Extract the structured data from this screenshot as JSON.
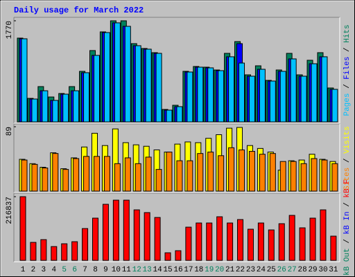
{
  "title": "Daily usage for March 2022",
  "chart_data": [
    {
      "type": "bar",
      "ylim": [
        0,
        1770
      ],
      "yticks": [
        1770
      ],
      "legend_separator": "/",
      "series": [
        {
          "name": "Hits",
          "color": "#00805C",
          "values": [
            1467,
            412,
            618,
            436,
            497,
            618,
            885,
            1249,
            1576,
            1770,
            1770,
            1370,
            1285,
            1212,
            218,
            291,
            885,
            970,
            958,
            909,
            1200,
            1406,
            824,
            982,
            727,
            909,
            1200,
            824,
            1079,
            1212,
            594
          ]
        },
        {
          "name": "Files",
          "color": "#0000FF",
          "values": [
            1455,
            400,
            545,
            376,
            485,
            545,
            861,
            1164,
            1564,
            1734,
            1673,
            1334,
            1273,
            1200,
            206,
            267,
            873,
            958,
            946,
            897,
            1140,
            1370,
            800,
            921,
            715,
            885,
            1103,
            800,
            1018,
            1140,
            570
          ]
        },
        {
          "name": "Pages",
          "color": "#00C0FF",
          "values": [
            1455,
            400,
            545,
            376,
            485,
            545,
            861,
            1164,
            1564,
            1734,
            1673,
            1334,
            1273,
            1200,
            206,
            267,
            873,
            958,
            946,
            897,
            1140,
            1030,
            800,
            921,
            715,
            885,
            1103,
            800,
            1018,
            1140,
            570
          ]
        }
      ]
    },
    {
      "type": "bar",
      "ylim": [
        0,
        89
      ],
      "yticks": [
        89
      ],
      "legend_separator": "/",
      "series": [
        {
          "name": "Visits",
          "color": "#FFFF00",
          "values": [
            44,
            38,
            33,
            53,
            31,
            46,
            61,
            80,
            63,
            86,
            67,
            64,
            62,
            57,
            54,
            65,
            68,
            67,
            73,
            78,
            87,
            88,
            63,
            59,
            54,
            29,
            42,
            43,
            51,
            44,
            41
          ]
        },
        {
          "name": "Sites",
          "color": "#FF8000",
          "values": [
            43,
            37,
            32,
            52,
            30,
            45,
            48,
            48,
            48,
            38,
            46,
            38,
            47,
            30,
            54,
            42,
            42,
            52,
            54,
            49,
            60,
            57,
            55,
            51,
            52,
            41,
            41,
            38,
            45,
            43,
            38
          ]
        }
      ]
    },
    {
      "type": "bar",
      "ylim": [
        0,
        216837
      ],
      "yticks": [
        216837
      ],
      "legend_separator": "/",
      "categories": [
        "1",
        "2",
        "3",
        "4",
        "5",
        "6",
        "7",
        "8",
        "9",
        "10",
        "11",
        "12",
        "13",
        "14",
        "15",
        "16",
        "17",
        "18",
        "19",
        "20",
        "21",
        "22",
        "23",
        "24",
        "25",
        "26",
        "27",
        "28",
        "29",
        "30",
        "31"
      ],
      "category_colors": [
        "#000000",
        "#000000",
        "#000000",
        "#000000",
        "#00805C",
        "#00805C",
        "#000000",
        "#000000",
        "#000000",
        "#000000",
        "#000000",
        "#00805C",
        "#00805C",
        "#000000",
        "#000000",
        "#000000",
        "#000000",
        "#000000",
        "#00805C",
        "#00805C",
        "#000000",
        "#000000",
        "#000000",
        "#000000",
        "#000000",
        "#00805C",
        "#00805C",
        "#000000",
        "#000000",
        "#000000",
        "#000000"
      ],
      "series": [
        {
          "name": "kB F",
          "color": "#FF0000",
          "values": [
            216837,
            61280,
            70700,
            47100,
            56600,
            63600,
            108400,
            143800,
            190900,
            205000,
            205000,
            172000,
            162700,
            146100,
            25900,
            33000,
            113100,
            127300,
            127300,
            148500,
            127300,
            139000,
            106100,
            127300,
            103700,
            124900,
            153200,
            110800,
            143800,
            172000,
            82500
          ]
        },
        {
          "name": "kB In",
          "color": "#0000FF"
        },
        {
          "name": "kB Out",
          "color": "#00805C"
        }
      ]
    }
  ]
}
